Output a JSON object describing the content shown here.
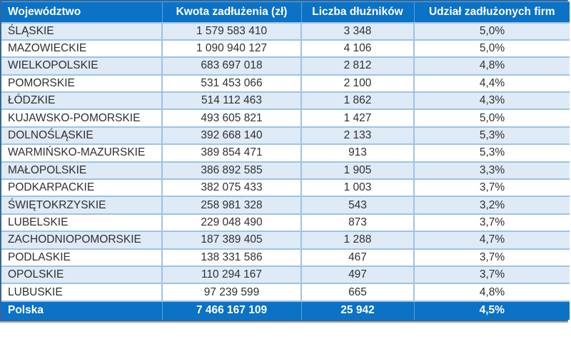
{
  "chart_data": {
    "type": "table",
    "columns": [
      "Województwo",
      "Kwota zadłużenia (zł)",
      "Liczba dłużników",
      "Udział zadłużonych firm"
    ],
    "rows": [
      [
        "ŚLĄSKIE",
        "1 579 583 410",
        "3 348",
        "5,0%"
      ],
      [
        "MAZOWIECKIE",
        "1 090 940 127",
        "4 106",
        "5,0%"
      ],
      [
        "WIELKOPOLSKIE",
        "683 697 018",
        "2 812",
        "4,8%"
      ],
      [
        "POMORSKIE",
        "531 453 066",
        "2 100",
        "4,4%"
      ],
      [
        "ŁÓDZKIE",
        "514 112 463",
        "1 862",
        "4,3%"
      ],
      [
        "KUJAWSKO-POMORSKIE",
        "493 605 821",
        "1 427",
        "5,0%"
      ],
      [
        "DOLNOŚLĄSKIE",
        "392 668 140",
        "2 133",
        "5,3%"
      ],
      [
        "WARMIŃSKO-MAZURSKIE",
        "389 854 471",
        "913",
        "5,3%"
      ],
      [
        "MAŁOPOLSKIE",
        "386 892 585",
        "1 905",
        "3,3%"
      ],
      [
        "PODKARPACKIE",
        "382 075 433",
        "1 003",
        "3,7%"
      ],
      [
        "ŚWIĘTOKRZYSKIE",
        "258 981 328",
        "543",
        "3,2%"
      ],
      [
        "LUBELSKIE",
        "229 048 490",
        "873",
        "3,7%"
      ],
      [
        "ZACHODNIOPOMORSKIE",
        "187 389 405",
        "1 288",
        "4,7%"
      ],
      [
        "PODLASKIE",
        "138 331 586",
        "467",
        "3,7%"
      ],
      [
        "OPOLSKIE",
        "110 294 167",
        "497",
        "3,7%"
      ],
      [
        "LUBUSKIE",
        "97 239 599",
        "665",
        "4,8%"
      ]
    ],
    "footer": [
      "Polska",
      "7 466 167 109",
      "25 942",
      "4,5%"
    ]
  },
  "colors": {
    "header_bg": "#0b72c6",
    "footer_bg": "#0b72c6",
    "stripe_bg": "#deeaf6",
    "grid_border": "#9dc3e6",
    "header_text": "#ffffff",
    "body_text": "#303030"
  }
}
